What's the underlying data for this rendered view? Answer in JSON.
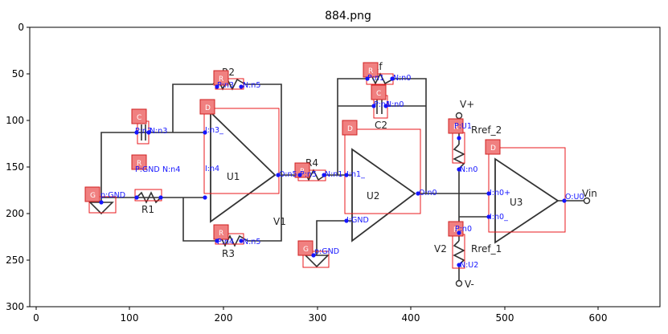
{
  "figure": {
    "title": "884.png",
    "x_ticks": [
      "0",
      "100",
      "200",
      "300",
      "400",
      "500",
      "600"
    ],
    "y_ticks": [
      "0",
      "50",
      "100",
      "150",
      "200",
      "250",
      "300"
    ]
  },
  "circuit_labels": {
    "u1": "U1",
    "u2": "U2",
    "u3": "U3",
    "r1": "R1",
    "r2": "R2",
    "r3": "R3",
    "r4": "R4",
    "rf": "Rf",
    "c1": "C1",
    "c2": "C2",
    "v1": "V1",
    "v2": "V2",
    "vplus": "V+",
    "vminus": "V-",
    "vin": "Vin",
    "rref2": "Rref_2",
    "rref1": "Rref_1"
  },
  "detections": [
    {
      "id": "g1",
      "badge": "G",
      "port": "p:GND"
    },
    {
      "id": "c1",
      "badge": "C",
      "port": "P:n3"
    },
    {
      "id": "c1n",
      "badge": "",
      "port": "N:n3"
    },
    {
      "id": "r1",
      "badge": "R",
      "port": "P:GND"
    },
    {
      "id": "r1n",
      "badge": "",
      "port": "N:n4"
    },
    {
      "id": "r2",
      "badge": "R",
      "port": "P:n3"
    },
    {
      "id": "r2n",
      "badge": "",
      "port": "N:n5"
    },
    {
      "id": "r3",
      "badge": "R",
      "port": "P:n4"
    },
    {
      "id": "r3n",
      "badge": "",
      "port": "N:n5"
    },
    {
      "id": "d1",
      "badge": "D",
      "port": "I:n3_"
    },
    {
      "id": "d1p",
      "badge": "",
      "port": "I:n4"
    },
    {
      "id": "d1o",
      "badge": "",
      "port": "O:n5"
    },
    {
      "id": "r4",
      "badge": "R",
      "port": "P:n5"
    },
    {
      "id": "r4n",
      "badge": "",
      "port": "N:n1"
    },
    {
      "id": "g2",
      "badge": "G",
      "port": "p:GND"
    },
    {
      "id": "rf",
      "badge": "R",
      "port": "P:n1"
    },
    {
      "id": "rfn",
      "badge": "",
      "port": "N:n0"
    },
    {
      "id": "c2",
      "badge": "C",
      "port": "P:n1"
    },
    {
      "id": "c2n",
      "badge": "",
      "port": "N:n0"
    },
    {
      "id": "d2",
      "badge": "D",
      "port": "I:n1_"
    },
    {
      "id": "d2p",
      "badge": "",
      "port": "I:GND"
    },
    {
      "id": "d2o",
      "badge": "",
      "port": "O:n0"
    },
    {
      "id": "rr2",
      "badge": "R",
      "port": "P:U1"
    },
    {
      "id": "rr2n",
      "badge": "",
      "port": "N:n0"
    },
    {
      "id": "rr1",
      "badge": "R",
      "port": "P:n0"
    },
    {
      "id": "rr1n",
      "badge": "",
      "port": "N:U2"
    },
    {
      "id": "d3",
      "badge": "D",
      "port": "I:n0_"
    },
    {
      "id": "d3p",
      "badge": "",
      "port": "I:n0+"
    },
    {
      "id": "d3o",
      "badge": "",
      "port": "O:U0"
    }
  ]
}
